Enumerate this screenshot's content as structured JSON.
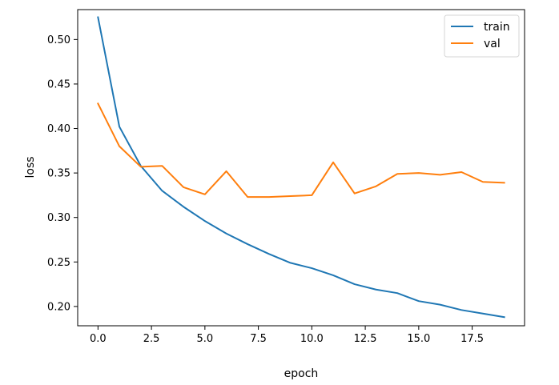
{
  "chart_data": {
    "type": "line",
    "title": "",
    "xlabel": "epoch",
    "ylabel": "loss",
    "xlim": [
      -0.95,
      19.95
    ],
    "ylim": [
      0.1783,
      0.5336
    ],
    "x_ticks": [
      0.0,
      2.5,
      5.0,
      7.5,
      10.0,
      12.5,
      15.0,
      17.5
    ],
    "x_tick_labels": [
      "0.0",
      "2.5",
      "5.0",
      "7.5",
      "10.0",
      "12.5",
      "15.0",
      "17.5"
    ],
    "y_ticks": [
      0.2,
      0.25,
      0.3,
      0.35,
      0.4,
      0.45,
      0.5
    ],
    "y_tick_labels": [
      "0.20",
      "0.25",
      "0.30",
      "0.35",
      "0.40",
      "0.45",
      "0.50"
    ],
    "grid": false,
    "legend_position": "top-right",
    "x": [
      0,
      1,
      2,
      3,
      4,
      5,
      6,
      7,
      8,
      9,
      10,
      11,
      12,
      13,
      14,
      15,
      16,
      17,
      18,
      19
    ],
    "series": [
      {
        "name": "train",
        "color": "#1f77b4",
        "values": [
          0.525,
          0.402,
          0.358,
          0.33,
          0.312,
          0.296,
          0.282,
          0.27,
          0.259,
          0.249,
          0.243,
          0.235,
          0.225,
          0.219,
          0.215,
          0.206,
          0.202,
          0.196,
          0.192,
          0.188
        ]
      },
      {
        "name": "val",
        "color": "#ff7f0e",
        "values": [
          0.428,
          0.38,
          0.357,
          0.358,
          0.334,
          0.326,
          0.352,
          0.323,
          0.323,
          0.324,
          0.325,
          0.362,
          0.327,
          0.335,
          0.349,
          0.35,
          0.348,
          0.351,
          0.34,
          0.339
        ]
      }
    ]
  }
}
